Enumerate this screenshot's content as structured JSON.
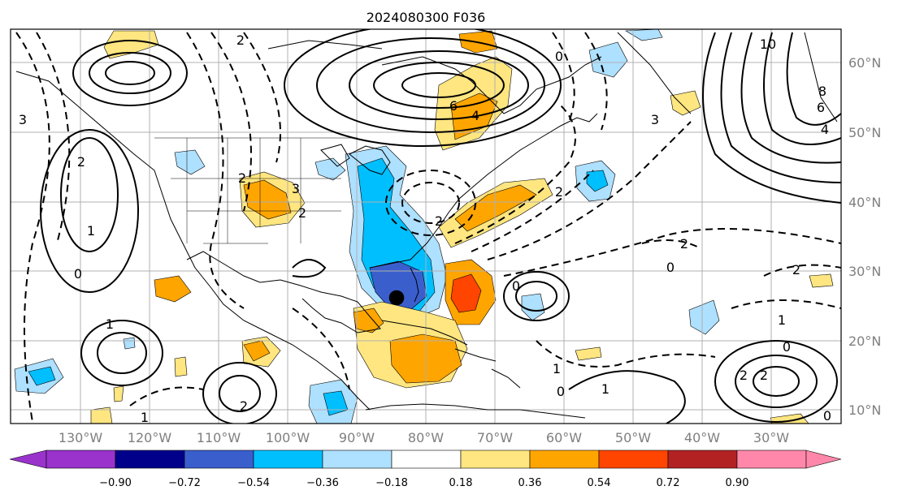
{
  "map": {
    "title": "2024080300 F036",
    "lon_labels": [
      "130°W",
      "120°W",
      "110°W",
      "100°W",
      "90°W",
      "80°W",
      "70°W",
      "60°W",
      "50°W",
      "40°W",
      "30°W"
    ],
    "lat_labels": [
      "60°N",
      "50°N",
      "40°N",
      "30°N",
      "20°N",
      "10°N"
    ],
    "contour_labels": [
      "2",
      "2",
      "6",
      "4",
      "3",
      "3",
      "10",
      "8",
      "6",
      "4",
      "2",
      "0",
      "2",
      "2",
      "3",
      "2",
      "1",
      "0",
      "2",
      "0",
      "0",
      "2",
      "1",
      "1",
      "0",
      "2",
      "2",
      "1",
      "0",
      "2",
      "1",
      "0",
      "1"
    ]
  },
  "colorbar": {
    "ticks": [
      "−0.90",
      "−0.72",
      "−0.54",
      "−0.36",
      "−0.18",
      "0.18",
      "0.36",
      "0.54",
      "0.72",
      "0.90"
    ],
    "colors": [
      "#9933cc",
      "#00008b",
      "#3a5fcd",
      "#00bfff",
      "#aee0ff",
      "#ffffff",
      "#ffe680",
      "#ffa500",
      "#ff4500",
      "#b22222",
      "#ff88aa"
    ]
  },
  "legend_colors": {
    "light_blue": "#aee0ff",
    "mid_blue": "#00bfff",
    "royal_blue": "#3a5fcd",
    "light_yellow": "#ffe680",
    "orange": "#ffa500",
    "red_orange": "#ff4500"
  }
}
